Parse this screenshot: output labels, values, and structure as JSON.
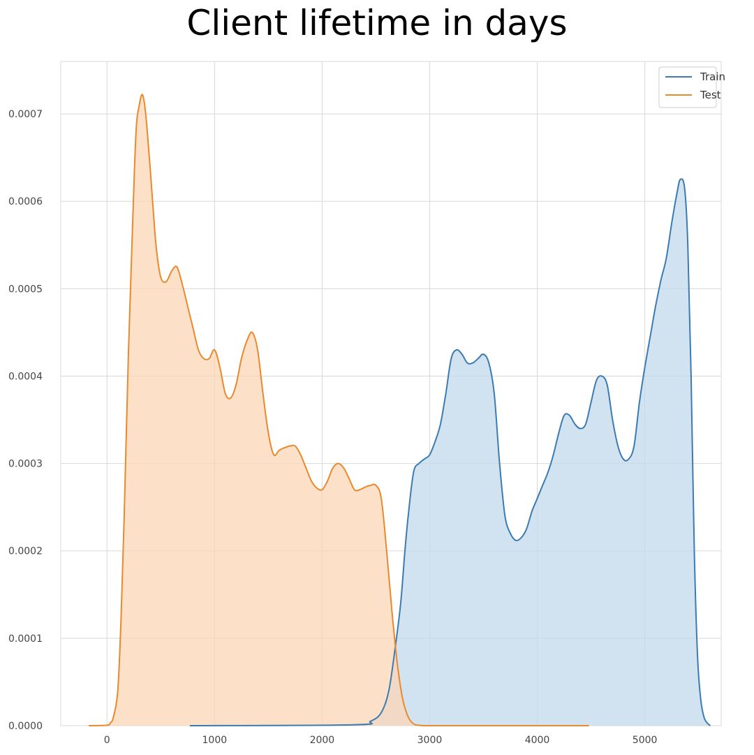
{
  "chart_data": {
    "type": "area",
    "title": "Client lifetime in days",
    "xlabel": "",
    "ylabel": "",
    "xlim": [
      -430,
      5710
    ],
    "ylim": [
      0,
      0.00076
    ],
    "xticks": [
      0,
      1000,
      2000,
      3000,
      4000,
      5000
    ],
    "yticks": [
      0,
      0.0001,
      0.0002,
      0.0003,
      0.0004,
      0.0005,
      0.0006,
      0.0007
    ],
    "xtick_labels": [
      "0",
      "1000",
      "2000",
      "3000",
      "4000",
      "5000"
    ],
    "ytick_labels": [
      "0.0000",
      "0.0001",
      "0.0002",
      "0.0003",
      "0.0004",
      "0.0005",
      "0.0006",
      "0.0007"
    ],
    "grid": true,
    "legend_position": "top-right",
    "series": [
      {
        "name": "Train",
        "color": "#3b7bb0",
        "fill": "#c2d9ec",
        "x": [
          770,
          2300,
          2450,
          2550,
          2620,
          2680,
          2730,
          2770,
          2800,
          2850,
          2900,
          2950,
          3000,
          3050,
          3100,
          3150,
          3200,
          3250,
          3300,
          3350,
          3400,
          3450,
          3500,
          3550,
          3600,
          3650,
          3700,
          3750,
          3800,
          3850,
          3900,
          3950,
          4000,
          4050,
          4100,
          4150,
          4200,
          4250,
          4300,
          4350,
          4400,
          4450,
          4500,
          4550,
          4600,
          4650,
          4700,
          4750,
          4800,
          4850,
          4900,
          4950,
          5000,
          5050,
          5100,
          5150,
          5200,
          5250,
          5300,
          5330,
          5370,
          5400,
          5430,
          5460,
          5490,
          5520,
          5550,
          5580,
          5610
        ],
        "y": [
          0,
          1e-06,
          5e-06,
          1.5e-05,
          4e-05,
          9e-05,
          0.00014,
          0.0002,
          0.00024,
          0.00029,
          0.0003,
          0.000305,
          0.00031,
          0.000325,
          0.000345,
          0.00038,
          0.00042,
          0.00043,
          0.000425,
          0.000415,
          0.000415,
          0.00042,
          0.000425,
          0.000415,
          0.00038,
          0.0003,
          0.00024,
          0.00022,
          0.000212,
          0.000215,
          0.000225,
          0.000245,
          0.00026,
          0.000275,
          0.00029,
          0.00031,
          0.000335,
          0.000355,
          0.000355,
          0.000345,
          0.00034,
          0.000345,
          0.00037,
          0.000395,
          0.0004,
          0.00039,
          0.00035,
          0.00032,
          0.000305,
          0.000305,
          0.00032,
          0.00037,
          0.00041,
          0.000445,
          0.00048,
          0.00051,
          0.000535,
          0.000575,
          0.00061,
          0.000625,
          0.000615,
          0.00055,
          0.0004,
          0.0002,
          8e-05,
          3e-05,
          1e-05,
          3e-06,
          0
        ]
      },
      {
        "name": "Test",
        "color": "#e8892e",
        "fill": "#fbd6b6",
        "x": [
          -170,
          0,
          30,
          60,
          100,
          130,
          160,
          200,
          240,
          270,
          300,
          330,
          360,
          400,
          430,
          460,
          500,
          550,
          600,
          650,
          700,
          750,
          800,
          850,
          900,
          950,
          1000,
          1050,
          1100,
          1150,
          1200,
          1250,
          1300,
          1350,
          1400,
          1450,
          1500,
          1550,
          1600,
          1650,
          1700,
          1750,
          1800,
          1850,
          1900,
          1950,
          2000,
          2050,
          2100,
          2150,
          2200,
          2250,
          2300,
          2350,
          2400,
          2450,
          2500,
          2550,
          2600,
          2650,
          2700,
          2750,
          2800,
          2850,
          2900,
          3000,
          3500,
          4480
        ],
        "y": [
          0,
          5e-07,
          3e-06,
          1e-05,
          4e-05,
          0.00012,
          0.00024,
          0.00043,
          0.00058,
          0.00068,
          0.00071,
          0.000722,
          0.0007,
          0.00064,
          0.00059,
          0.000545,
          0.000513,
          0.000508,
          0.00052,
          0.000525,
          0.000505,
          0.00048,
          0.000455,
          0.00043,
          0.00042,
          0.00042,
          0.00043,
          0.00041,
          0.00038,
          0.000375,
          0.00039,
          0.00042,
          0.00044,
          0.00045,
          0.00043,
          0.00038,
          0.000335,
          0.00031,
          0.000315,
          0.000318,
          0.00032,
          0.00032,
          0.00031,
          0.000295,
          0.00028,
          0.000272,
          0.00027,
          0.00028,
          0.000295,
          0.0003,
          0.000295,
          0.000283,
          0.00027,
          0.00027,
          0.000273,
          0.000275,
          0.000275,
          0.00026,
          0.0002,
          0.00013,
          7e-05,
          3e-05,
          1e-05,
          2e-06,
          5e-07,
          0,
          0,
          0
        ]
      }
    ]
  }
}
